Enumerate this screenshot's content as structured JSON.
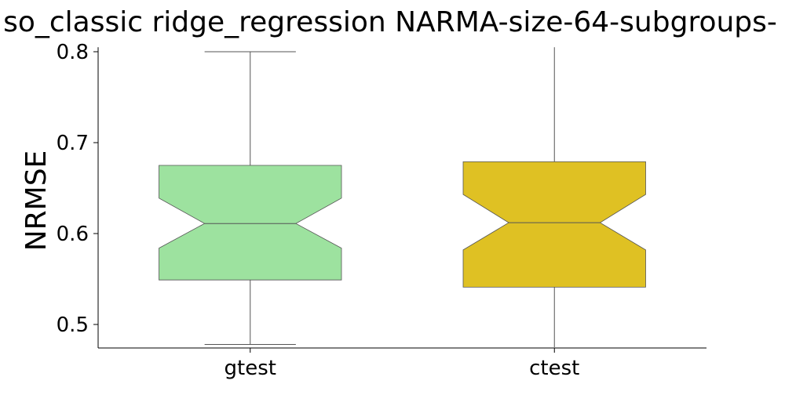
{
  "chart_data": {
    "type": "box",
    "title": "so_classic ridge_regression NARMA-size-64-subgroups-",
    "xlabel": "",
    "ylabel": "NRMSE",
    "ylim": [
      0.475,
      0.805
    ],
    "y_ticks": [
      "0.5",
      "0.6",
      "0.7",
      "0.8"
    ],
    "y_tick_values": [
      0.5,
      0.6,
      0.7,
      0.8
    ],
    "notched": true,
    "grid": false,
    "categories": [
      "gtest",
      "ctest"
    ],
    "boxes": [
      {
        "category": "gtest",
        "color": "#9de29f",
        "whisker_low": 0.478,
        "q1": 0.549,
        "notch_low": 0.584,
        "median": 0.611,
        "notch_high": 0.639,
        "q3": 0.675,
        "whisker_high": 0.8
      },
      {
        "category": "ctest",
        "color": "#dfc123",
        "whisker_low": 0.475,
        "q1": 0.541,
        "notch_low": 0.582,
        "median": 0.612,
        "notch_high": 0.643,
        "q3": 0.679,
        "whisker_high": 0.805
      }
    ]
  }
}
